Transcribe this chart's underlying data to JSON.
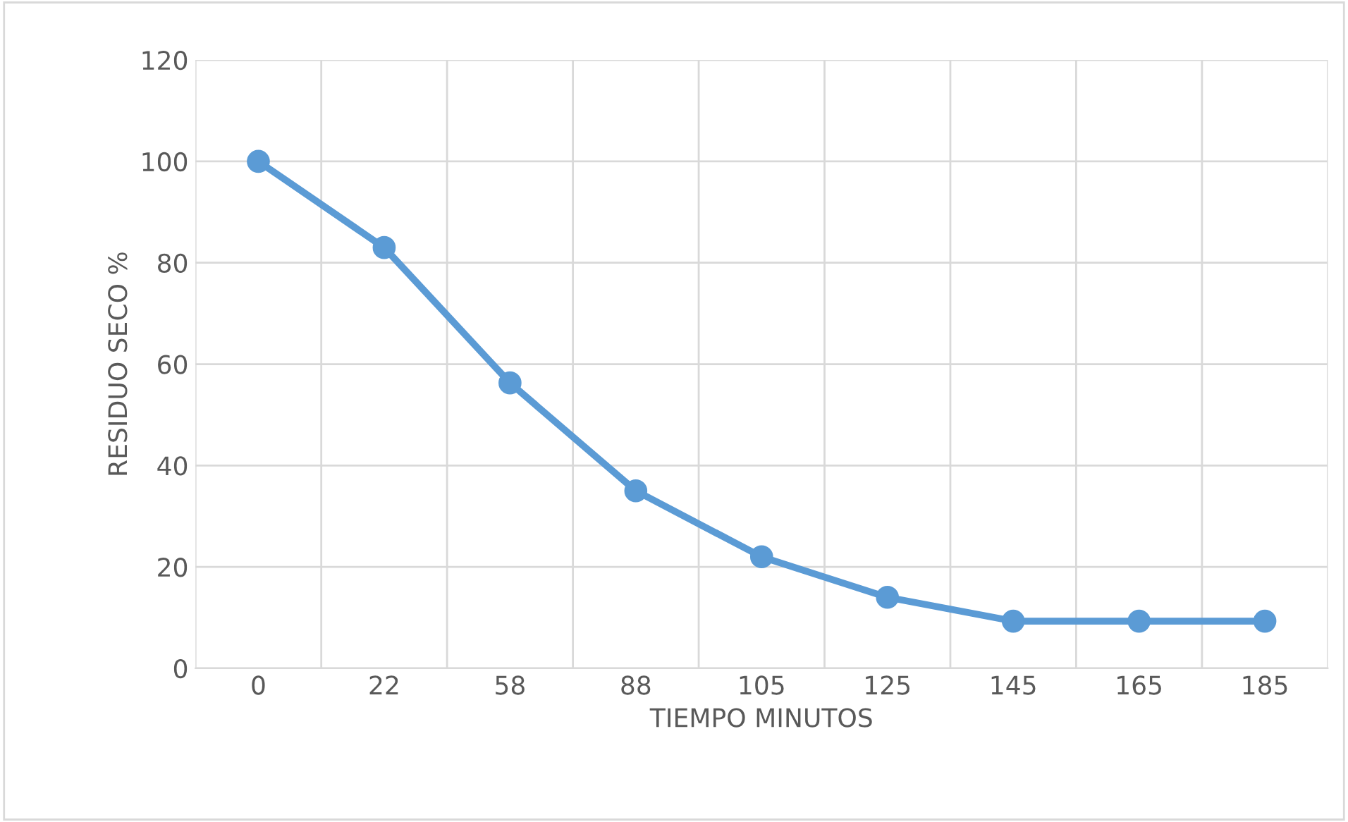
{
  "chart_data": {
    "type": "line",
    "xlabel": "TIEMPO MINUTOS",
    "ylabel": "RESIDUO SECO %",
    "categories": [
      "0",
      "22",
      "58",
      "88",
      "105",
      "125",
      "145",
      "165",
      "185"
    ],
    "series": [
      {
        "color": "#5b9bd5",
        "values": [
          100,
          83,
          56.3,
          35,
          22,
          14,
          9.3,
          9.3,
          9.3
        ]
      }
    ],
    "ylim": [
      0,
      120
    ],
    "yticks": [
      0,
      20,
      40,
      60,
      80,
      100,
      120
    ],
    "grid": true,
    "marker": "circle",
    "line_style": "solid"
  }
}
